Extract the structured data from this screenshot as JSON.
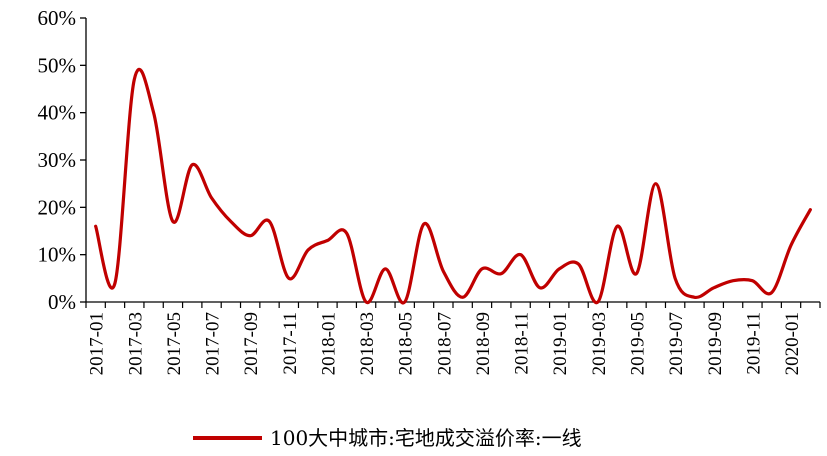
{
  "chart_data": {
    "type": "line",
    "title": "",
    "xlabel": "",
    "ylabel": "",
    "ylim": [
      0,
      0.6
    ],
    "y_ticks": [
      0,
      0.1,
      0.2,
      0.3,
      0.4,
      0.5,
      0.6
    ],
    "y_tick_labels": [
      "0%",
      "10%",
      "20%",
      "30%",
      "40%",
      "50%",
      "60%"
    ],
    "x_tick_labels": [
      "2017-01",
      "2017-03",
      "2017-05",
      "2017-07",
      "2017-09",
      "2017-11",
      "2018-01",
      "2018-03",
      "2018-05",
      "2018-07",
      "2018-09",
      "2018-11",
      "2019-01",
      "2019-03",
      "2019-05",
      "2019-07",
      "2019-09",
      "2019-11",
      "2020-01"
    ],
    "grid": false,
    "legend_position": "bottom",
    "line_color": "#c00000",
    "x": [
      "2017-01",
      "2017-02",
      "2017-03",
      "2017-04",
      "2017-05",
      "2017-06",
      "2017-07",
      "2017-08",
      "2017-09",
      "2017-10",
      "2017-11",
      "2017-12",
      "2018-01",
      "2018-02",
      "2018-03",
      "2018-04",
      "2018-05",
      "2018-06",
      "2018-07",
      "2018-08",
      "2018-09",
      "2018-10",
      "2018-11",
      "2018-12",
      "2019-01",
      "2019-02",
      "2019-03",
      "2019-04",
      "2019-05",
      "2019-06",
      "2019-07",
      "2019-08",
      "2019-09",
      "2019-10",
      "2019-11",
      "2019-12",
      "2020-01",
      "2020-02"
    ],
    "series": [
      {
        "name": "100大中城市:宅地成交溢价率:一线",
        "values": [
          0.16,
          0.04,
          0.47,
          0.4,
          0.17,
          0.29,
          0.22,
          0.17,
          0.14,
          0.17,
          0.05,
          0.11,
          0.13,
          0.145,
          0.0,
          0.07,
          0.0,
          0.165,
          0.065,
          0.01,
          0.07,
          0.06,
          0.1,
          0.03,
          0.07,
          0.08,
          0.0,
          0.16,
          0.06,
          0.25,
          0.05,
          0.01,
          0.03,
          0.045,
          0.045,
          0.02,
          0.12,
          0.195
        ]
      }
    ]
  }
}
